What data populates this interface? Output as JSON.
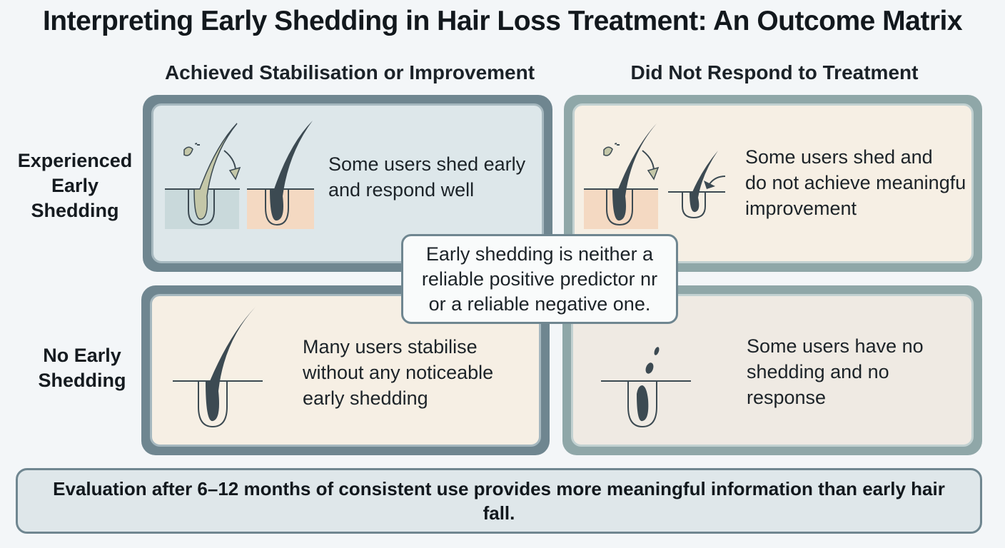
{
  "title": "Interpreting Early Shedding in Hair Loss Treatment: An Outcome Matrix",
  "columns": [
    "Achieved Stabilisation or Improvement",
    "Did Not Respond to Treatment"
  ],
  "rows": [
    "Experienced\nEarly\nShedding",
    "No Early\nShedding"
  ],
  "cells": {
    "shed_improve": "Some users shed early\nand respond well",
    "shed_no_response": "Some users shed and\ndo not achieve meaningfu\nimprovement",
    "noshed_improve": "Many users stabilise\nwithout any noticeable\nearly shedding",
    "noshed_no_response": "Some users have no\nshedding and no\nresponse"
  },
  "callout": "Early shedding is neither a\nreliable positive predictor nr\nor a reliable negative one.",
  "footer": "Evaluation after 6–12 months of consistent use provides more meaningful information than early hair fall.",
  "colors": {
    "frame_dark": "#6f8690",
    "frame_light": "#8fa7a8",
    "fill_blue": "#dde7ea",
    "fill_cream": "#f6efe4",
    "hair": "#3c4a52"
  }
}
